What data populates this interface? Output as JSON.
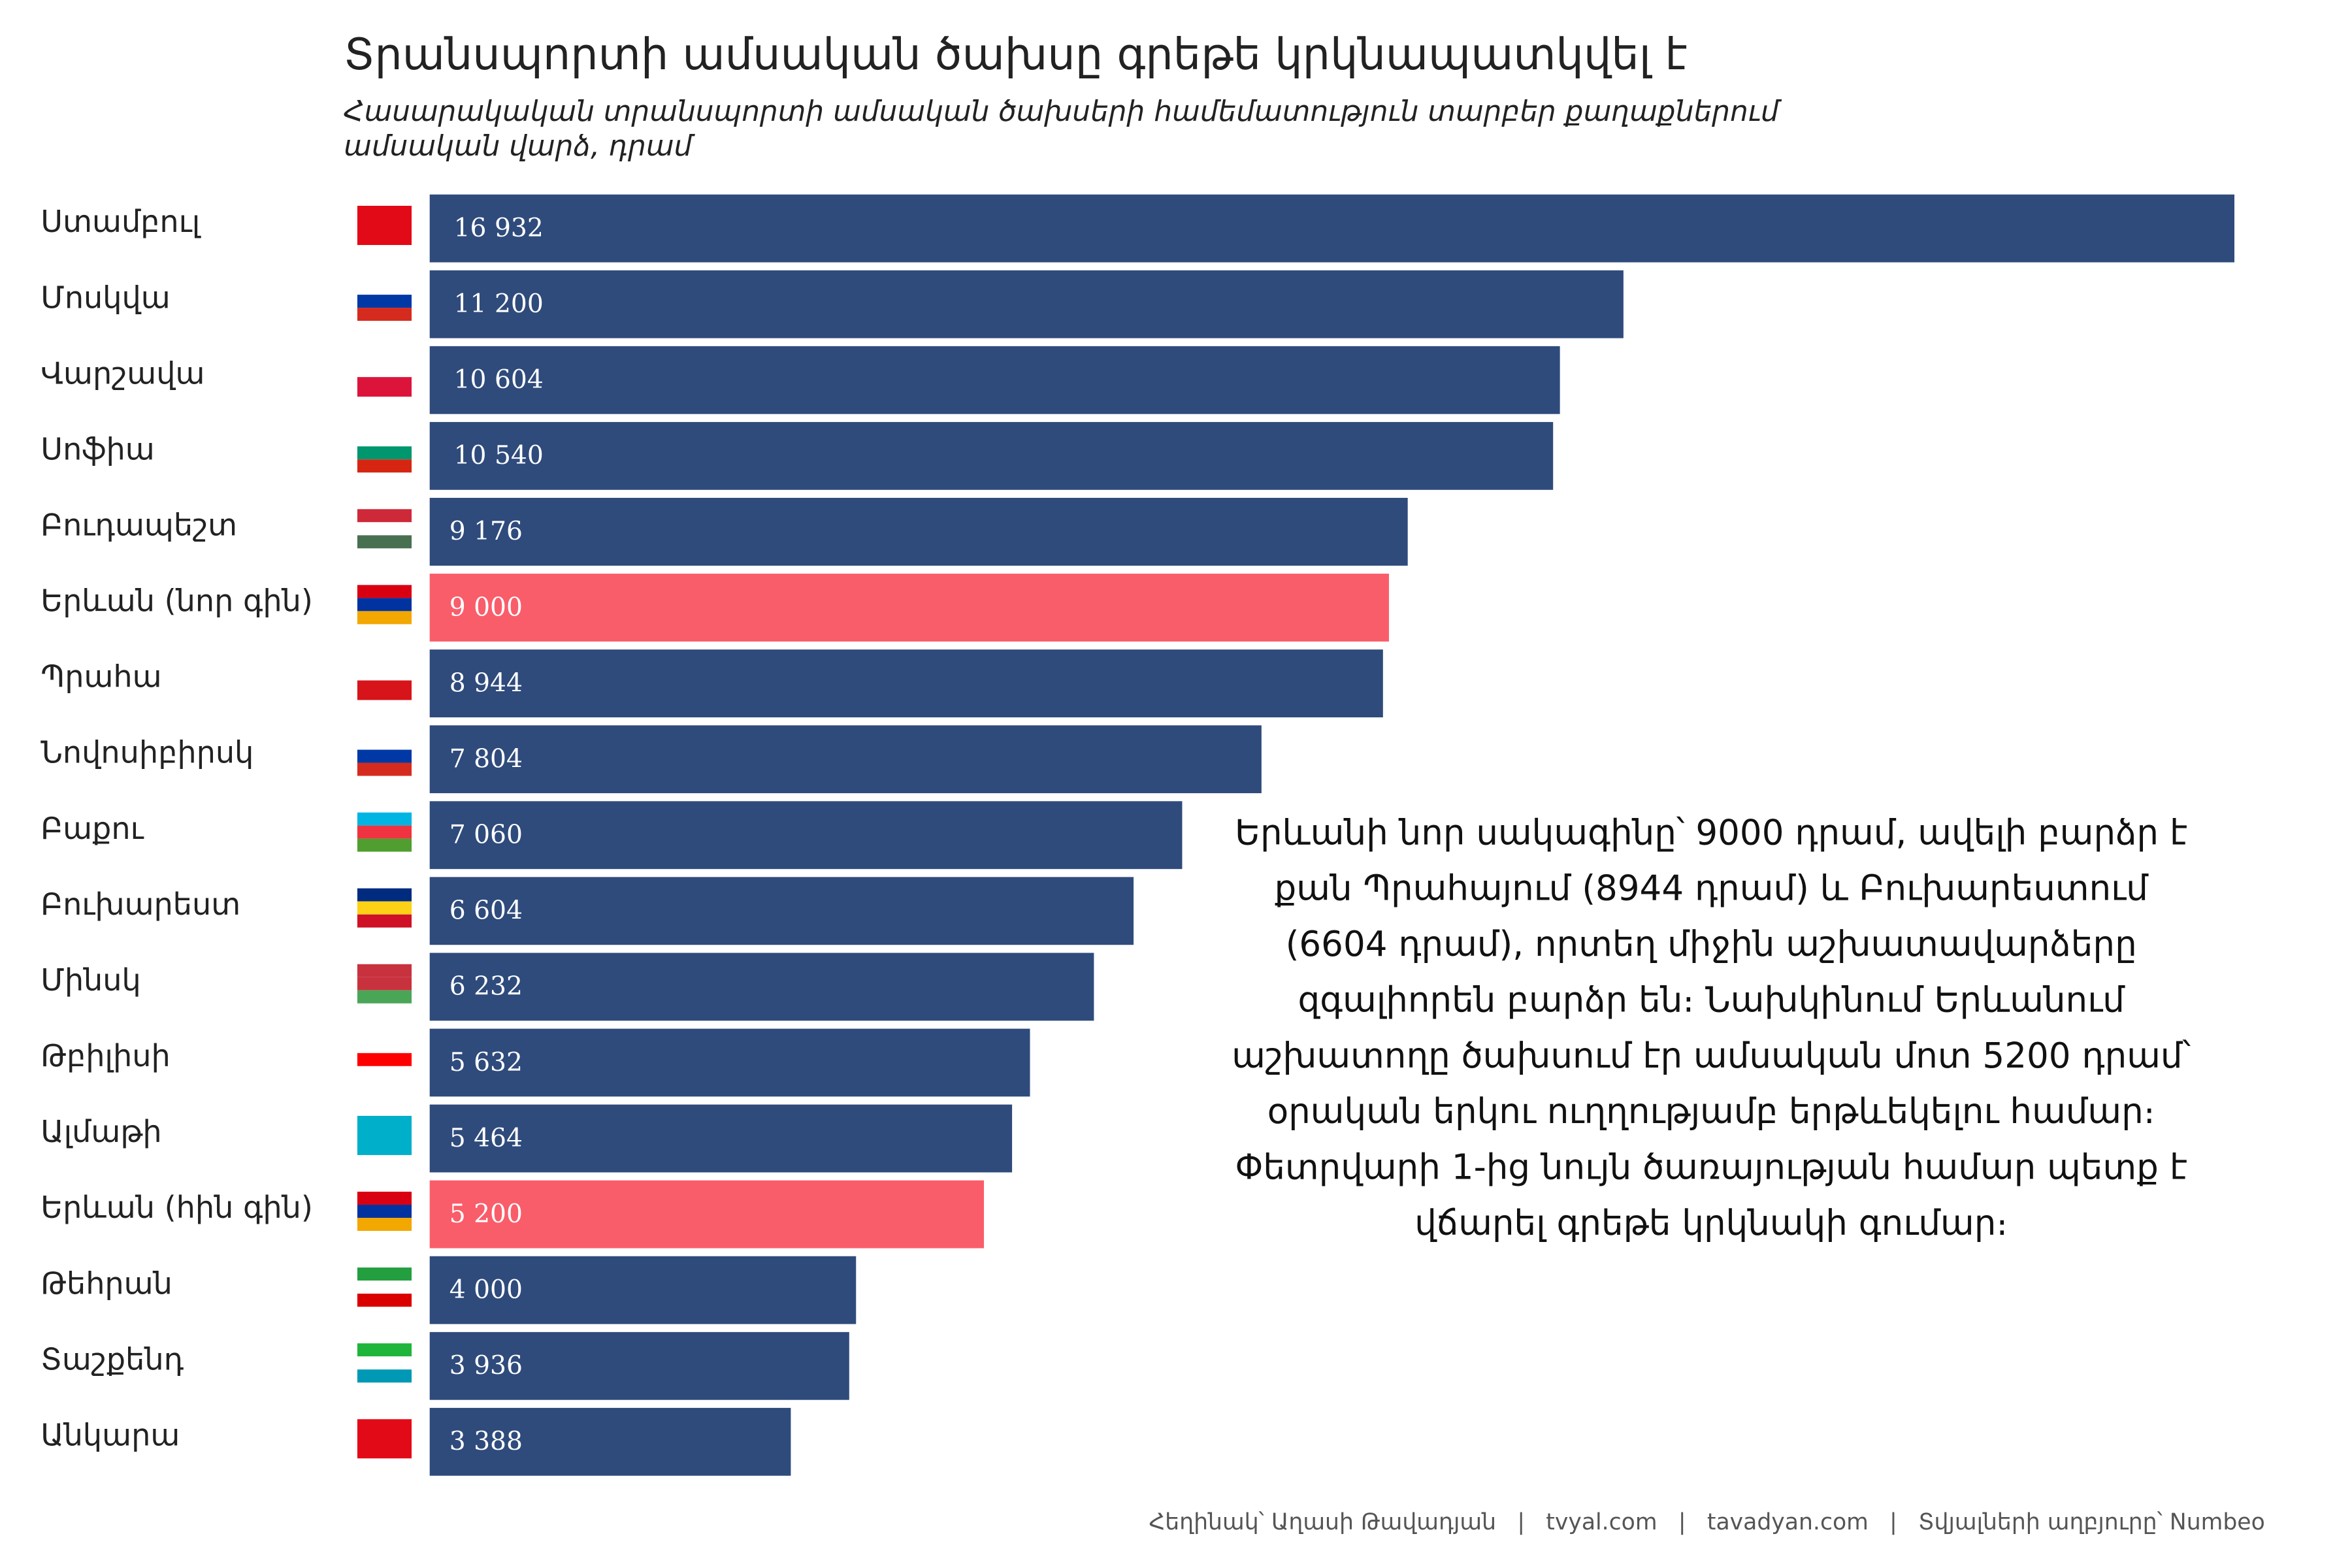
{
  "chart_data": {
    "type": "bar",
    "orientation": "horizontal",
    "title": "Տրանսպորտի ամսական ծախսը գրեթե կրկնապատկվել է",
    "subtitle": "Հասարակական տրանսպորտի ամսական ծախսերի համեմատություն տարբեր քաղաքներում",
    "unit_note": "ամսական վարձ, դրամ",
    "categories": [
      "Ստամբուլ",
      "Մոսկվա",
      "Վարշավա",
      "Սոֆիա",
      "Բուդապեշտ",
      "Երևան (նոր գին)",
      "Պրահա",
      "Նովոսիբիրսկ",
      "Բաքու",
      "Բուխարեստ",
      "Մինսկ",
      "Թբիլիսի",
      "Ալմաթի",
      "Երևան (հին գին)",
      "Թեհրան",
      "Տաշքենդ",
      "Անկարա"
    ],
    "values": [
      16932,
      11200,
      10604,
      10540,
      9176,
      9000,
      8944,
      7804,
      7060,
      6604,
      6232,
      5632,
      5464,
      5200,
      4000,
      3936,
      3388
    ],
    "value_labels": [
      "16 932",
      "11 200",
      "10 604",
      "10 540",
      "9 176",
      "9 000",
      "8 944",
      "7 804",
      "7 060",
      "6 604",
      "6 232",
      "5 632",
      "5 464",
      "5 200",
      "4 000",
      "3 936",
      "3 388"
    ],
    "colors": [
      "#2f4b7c",
      "#2f4b7c",
      "#2f4b7c",
      "#2f4b7c",
      "#2f4b7c",
      "#f95d6a",
      "#2f4b7c",
      "#2f4b7c",
      "#2f4b7c",
      "#2f4b7c",
      "#2f4b7c",
      "#2f4b7c",
      "#2f4b7c",
      "#f95d6a",
      "#2f4b7c",
      "#2f4b7c",
      "#2f4b7c"
    ],
    "annotation": "Երևանի նոր սակագինը՝ 9000 դրամ, ավելի բարձր է քան Պրահայում (8944 դրամ) և Բուխարեստում (6604 դրամ), որտեղ միջին աշխատավարձերը զգալիորեն բարձր են։ Նախկինում Երևանում աշխատողը ծախսում էր ամսական մոտ 5200 դրամ՝ օրական երկու ուղղությամբ երթևեկելու համար։ Փետրվարի 1-ից նույն ծառայության համար պետք է վճարել գրեթե կրկնակի գումար։",
    "footer": [
      "Հեղինակ՝ Աղասի Թավադյան",
      "|",
      "tvyal.com",
      "|",
      "tavadyan.com",
      "|",
      "Տվյալների աղբյուրը՝ Numbeo"
    ]
  }
}
